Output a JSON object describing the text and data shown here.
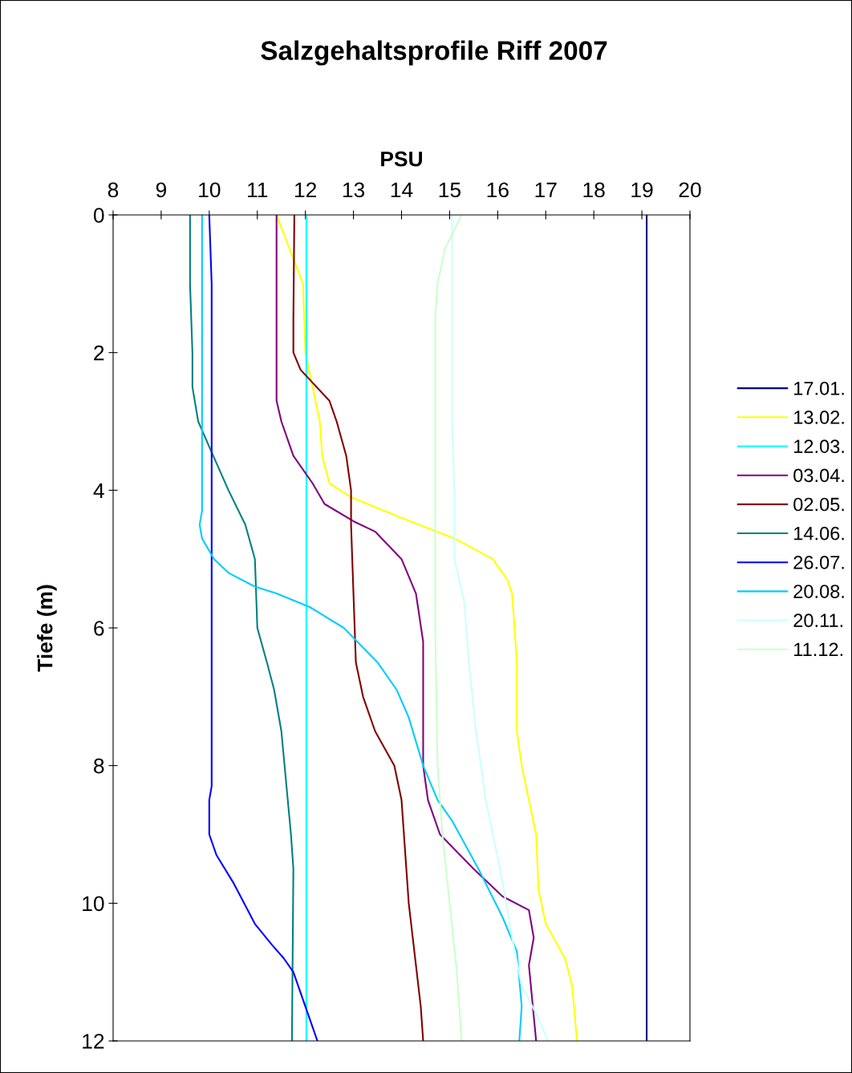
{
  "chart_data": {
    "type": "line",
    "title": "Salzgehaltsprofile Riff 2007",
    "xlabel": "PSU",
    "ylabel": "Tiefe (m)",
    "xlim": [
      8,
      20
    ],
    "xticks": [
      8,
      9,
      10,
      11,
      12,
      13,
      14,
      15,
      16,
      17,
      18,
      19,
      20
    ],
    "ylim": [
      12,
      0
    ],
    "yticks": [
      0,
      2,
      4,
      6,
      8,
      10,
      12
    ],
    "grid": false,
    "legend": "right",
    "marker": "none",
    "line_style": "solid",
    "series": [
      {
        "name": "17.01.",
        "color": "#000080",
        "x": [
          19.1,
          19.1
        ],
        "values": [
          0,
          12
        ]
      },
      {
        "name": "13.02.",
        "color": "#ffff00",
        "x": [
          11.4,
          11.95,
          12.0,
          12.3,
          12.35,
          12.5,
          12.95,
          14.0,
          15.1,
          15.9,
          16.2,
          16.3,
          16.4,
          16.4,
          16.5,
          16.8,
          16.85,
          17.0,
          17.4,
          17.55,
          17.65
        ],
        "values": [
          0,
          1,
          2,
          3,
          3.5,
          3.9,
          4.1,
          4.4,
          4.7,
          5.0,
          5.3,
          5.5,
          6.5,
          7.5,
          8,
          9,
          9.8,
          10.3,
          10.8,
          11.2,
          12
        ]
      },
      {
        "name": "12.03.",
        "color": "#00ffff",
        "x": [
          12.02,
          12.02
        ],
        "values": [
          0,
          12
        ]
      },
      {
        "name": "03.04.",
        "color": "#800080",
        "x": [
          11.4,
          11.4,
          11.5,
          11.75,
          12.15,
          12.4,
          13.0,
          13.45,
          14.0,
          14.3,
          14.45,
          14.45,
          14.55,
          14.8,
          15.5,
          16.1,
          16.65,
          16.75,
          16.65,
          16.8
        ],
        "values": [
          0,
          2.7,
          3.0,
          3.5,
          3.9,
          4.2,
          4.45,
          4.6,
          5.0,
          5.5,
          6.2,
          8.0,
          8.5,
          9.0,
          9.5,
          9.9,
          10.1,
          10.5,
          10.9,
          12
        ]
      },
      {
        "name": "02.05.",
        "color": "#800000",
        "x": [
          11.77,
          11.75,
          11.75,
          11.9,
          12.5,
          12.65,
          12.85,
          12.95,
          12.95,
          13.05,
          13.2,
          13.45,
          13.85,
          14.0,
          14.15,
          14.4,
          14.45
        ],
        "values": [
          0,
          1.5,
          2,
          2.25,
          2.7,
          3,
          3.5,
          4.0,
          4.5,
          6.5,
          7,
          7.5,
          8,
          8.5,
          10,
          11.5,
          12
        ]
      },
      {
        "name": "14.06.",
        "color": "#008080",
        "x": [
          9.6,
          9.6,
          9.65,
          9.65,
          9.77,
          10.02,
          10.4,
          10.75,
          10.95,
          11.0,
          11.2,
          11.35,
          11.5,
          11.7,
          11.75,
          11.72
        ],
        "values": [
          0,
          1,
          2,
          2.5,
          3,
          3.4,
          4,
          4.5,
          5,
          6,
          6.5,
          6.9,
          7.5,
          9,
          9.5,
          12
        ]
      },
      {
        "name": "26.07.",
        "color": "#0000ff",
        "x": [
          10.0,
          10.05,
          10.05,
          10.0,
          10.0,
          10.15,
          10.5,
          10.95,
          11.3,
          11.55,
          11.75,
          12.0,
          12.25
        ],
        "values": [
          0,
          1,
          8.3,
          8.5,
          9,
          9.3,
          9.7,
          10.3,
          10.6,
          10.8,
          11,
          11.5,
          12
        ]
      },
      {
        "name": "20.08.",
        "color": "#00ccff",
        "x": [
          9.85,
          9.85,
          9.8,
          9.85,
          10.1,
          10.4,
          10.95,
          11.4,
          12.1,
          12.8,
          13.5,
          13.9,
          14.15,
          14.45,
          14.75,
          15.05,
          15.6,
          16.1,
          16.4,
          16.5,
          16.45
        ],
        "values": [
          0,
          4.3,
          4.5,
          4.7,
          5.0,
          5.2,
          5.4,
          5.5,
          5.7,
          6.0,
          6.5,
          6.9,
          7.3,
          8.0,
          8.5,
          8.8,
          9.5,
          10.2,
          10.7,
          11.5,
          12
        ]
      },
      {
        "name": "20.11.",
        "color": "#ccffff",
        "x": [
          15.05,
          15.05,
          15.1,
          15.1,
          15.3,
          15.4,
          15.55,
          15.75,
          16.05,
          16.3,
          16.5,
          16.8,
          17.05
        ],
        "values": [
          0,
          3,
          4,
          5,
          5.6,
          6.5,
          7.5,
          8.5,
          9.5,
          10.5,
          11.2,
          11.6,
          12
        ]
      },
      {
        "name": "11.12.",
        "color": "#ccffcc",
        "x": [
          15.25,
          14.9,
          14.75,
          14.7,
          14.7,
          14.7,
          14.75,
          14.85,
          15.0,
          15.15,
          15.25
        ],
        "values": [
          0,
          0.5,
          1.0,
          1.5,
          1.8,
          6,
          8,
          9,
          10,
          11,
          12
        ]
      }
    ]
  }
}
